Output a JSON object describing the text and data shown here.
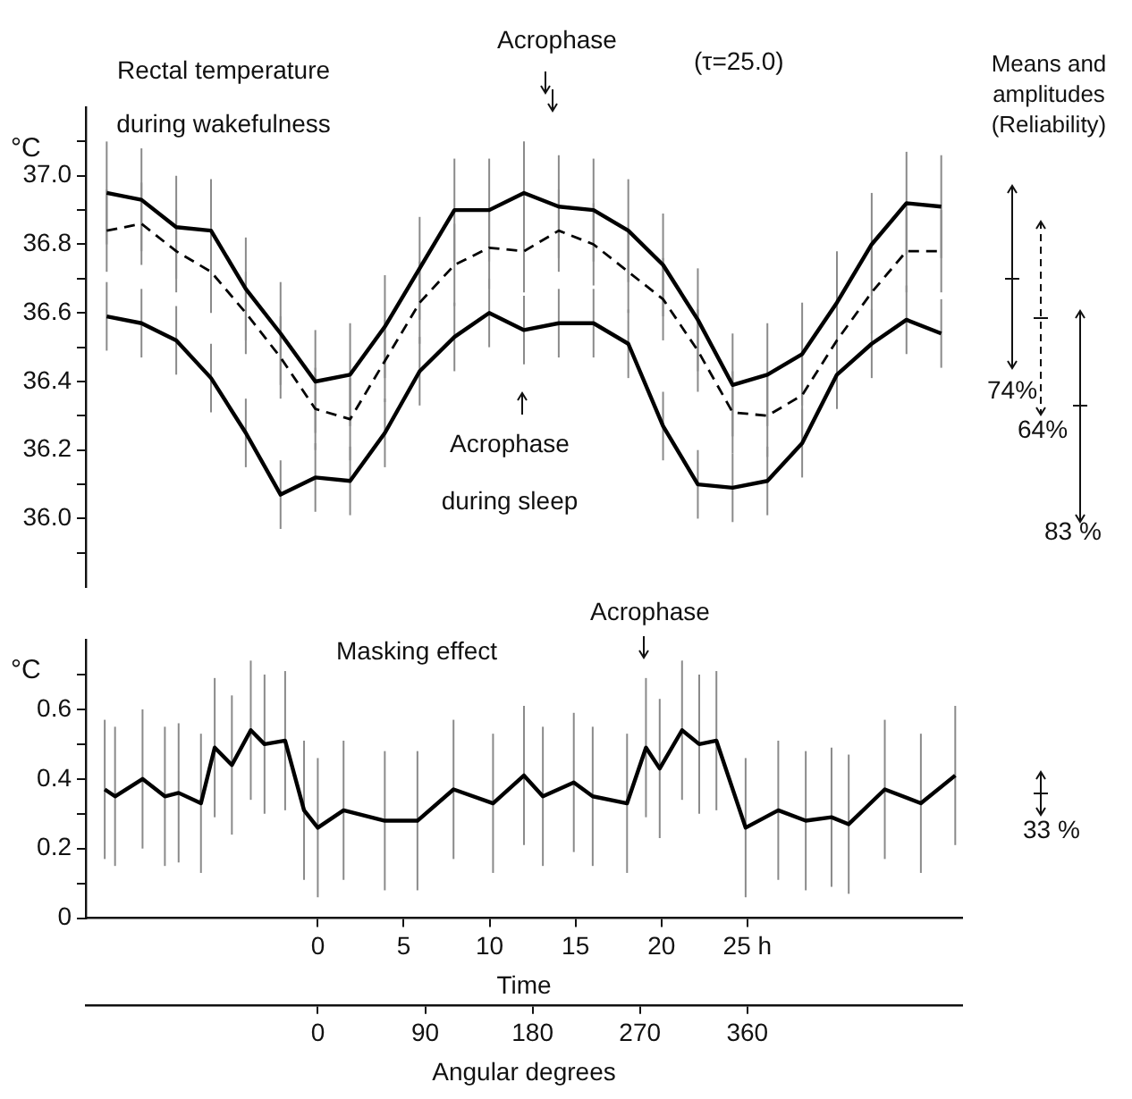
{
  "chart_data": [
    {
      "type": "line",
      "ylabel": "°C",
      "tick_labels": "y",
      "grid": false,
      "legend": false,
      "marker": "none",
      "annotations": [
        "Rectal temperature during wakefulness",
        "Acrophase",
        "(τ=25.0)",
        "Acrophase during sleep",
        "Means and amplitudes (Reliability)",
        "74%",
        "64%",
        "83 %"
      ],
      "categories": [
        null,
        null,
        null,
        null,
        null,
        null,
        null,
        null,
        null,
        null,
        null,
        null,
        null,
        null,
        null,
        null,
        null,
        null,
        null,
        null,
        null,
        null,
        null,
        null,
        null
      ],
      "ylim": [
        35.8,
        37.2
      ],
      "yticks": [
        {
          "value": 35.9,
          "label": null
        },
        {
          "value": 36,
          "label": "36.0"
        },
        {
          "value": 36.1,
          "label": null
        },
        36.2,
        {
          "value": 36.3,
          "label": null
        },
        36.4,
        {
          "value": 36.5,
          "label": null
        },
        36.6,
        {
          "value": 36.7,
          "label": null
        },
        36.8,
        {
          "value": 36.9,
          "label": null
        },
        {
          "value": 37,
          "label": "37.0"
        },
        {
          "value": 37.1,
          "label": null
        }
      ],
      "series": [
        {
          "color": "#000000",
          "line_style": "solid",
          "values": [
            36.95,
            36.93,
            36.85,
            36.84,
            36.67,
            36.54,
            36.4,
            36.42,
            36.56,
            36.73,
            36.9,
            36.9,
            36.95,
            36.91,
            36.9,
            36.84,
            36.74,
            36.58,
            36.39,
            36.42,
            36.48,
            36.63,
            36.8,
            36.92,
            36.91
          ],
          "errors": [
            0.15,
            0.15,
            0.15,
            0.15,
            0.15,
            0.15,
            0.15,
            0.15,
            0.15,
            0.15,
            0.15,
            0.15,
            0.15,
            0.15,
            0.15,
            0.15,
            0.15,
            0.15,
            0.15,
            0.15,
            0.15,
            0.15,
            0.15,
            0.15,
            0.15
          ]
        },
        {
          "color": "#000000",
          "line_style": "dashed",
          "values": [
            36.84,
            36.86,
            36.78,
            36.72,
            36.6,
            36.47,
            36.32,
            36.29,
            36.46,
            36.63,
            36.74,
            36.79,
            36.78,
            36.84,
            36.8,
            36.72,
            36.64,
            36.49,
            36.31,
            36.3,
            36.36,
            36.52,
            36.66,
            36.78,
            36.78
          ],
          "errors": [
            0.12,
            0.12,
            0.12,
            0.12,
            0.12,
            0.12,
            0.12,
            0.12,
            0.12,
            0.12,
            0.12,
            0.12,
            0.12,
            0.12,
            0.12,
            0.12,
            0.12,
            0.12,
            0.12,
            0.12,
            0.12,
            0.12,
            0.12,
            0.12,
            0.12
          ]
        },
        {
          "color": "#000000",
          "line_style": "solid",
          "values": [
            36.59,
            36.57,
            36.52,
            36.41,
            36.25,
            36.07,
            36.12,
            36.11,
            36.25,
            36.43,
            36.53,
            36.6,
            36.55,
            36.57,
            36.57,
            36.51,
            36.27,
            36.1,
            36.09,
            36.11,
            36.22,
            36.42,
            36.51,
            36.58,
            36.54
          ],
          "errors": [
            0.1,
            0.1,
            0.1,
            0.1,
            0.1,
            0.1,
            0.1,
            0.1,
            0.1,
            0.1,
            0.1,
            0.1,
            0.1,
            0.1,
            0.1,
            0.1,
            0.1,
            0.1,
            0.1,
            0.1,
            0.1,
            0.1,
            0.1,
            0.1,
            0.1
          ]
        }
      ]
    },
    {
      "type": "line",
      "ylabel": "°C",
      "xlabel": "Time",
      "x2label": "Angular degrees",
      "grid": false,
      "legend": false,
      "marker": "none",
      "annotations": [
        "Masking effect",
        "Acrophase",
        "33 %"
      ],
      "xlim": [
        -13.5,
        37.5
      ],
      "xticks": [
        0,
        5,
        10,
        15,
        20,
        {
          "value": 25,
          "label": "25 h"
        }
      ],
      "x2lim": [
        -194.4,
        540
      ],
      "x2ticks": [
        0,
        90,
        180,
        270,
        360
      ],
      "ylim": [
        0,
        0.8
      ],
      "yticks": [
        0,
        {
          "value": 0.1,
          "label": null
        },
        0.2,
        {
          "value": 0.3,
          "label": null
        },
        0.4,
        {
          "value": 0.5,
          "label": null
        },
        0.6,
        {
          "value": 0.7,
          "label": null
        }
      ],
      "series": [
        {
          "color": "#000000",
          "line_style": "solid",
          "x": [
            -12.4,
            -11.8,
            -10.2,
            -8.9,
            -8.1,
            -6.8,
            -6.0,
            -5.0,
            -3.9,
            -3.1,
            -1.9,
            -0.8,
            0,
            1.5,
            3.9,
            5.8,
            7.9,
            10.2,
            12.0,
            13.1,
            14.9,
            16.0,
            18.0,
            19.1,
            19.9,
            21.2,
            22.2,
            23.2,
            24.9,
            26.8,
            28.4,
            29.9,
            30.9,
            33.0,
            35.1,
            37.1
          ],
          "values": [
            0.37,
            0.35,
            0.4,
            0.35,
            0.36,
            0.33,
            0.49,
            0.44,
            0.54,
            0.5,
            0.51,
            0.31,
            0.26,
            0.31,
            0.28,
            0.28,
            0.37,
            0.33,
            0.41,
            0.35,
            0.39,
            0.35,
            0.33,
            0.49,
            0.43,
            0.54,
            0.5,
            0.51,
            0.26,
            0.31,
            0.28,
            0.29,
            0.27,
            0.37,
            0.33,
            0.41
          ],
          "errors": [
            0.2,
            0.2,
            0.2,
            0.2,
            0.2,
            0.2,
            0.2,
            0.2,
            0.2,
            0.2,
            0.2,
            0.2,
            0.2,
            0.2,
            0.2,
            0.2,
            0.2,
            0.2,
            0.2,
            0.2,
            0.2,
            0.2,
            0.2,
            0.2,
            0.2,
            0.2,
            0.2,
            0.2,
            0.2,
            0.2,
            0.2,
            0.2,
            0.2,
            0.2,
            0.2,
            0.2
          ]
        }
      ]
    }
  ]
}
